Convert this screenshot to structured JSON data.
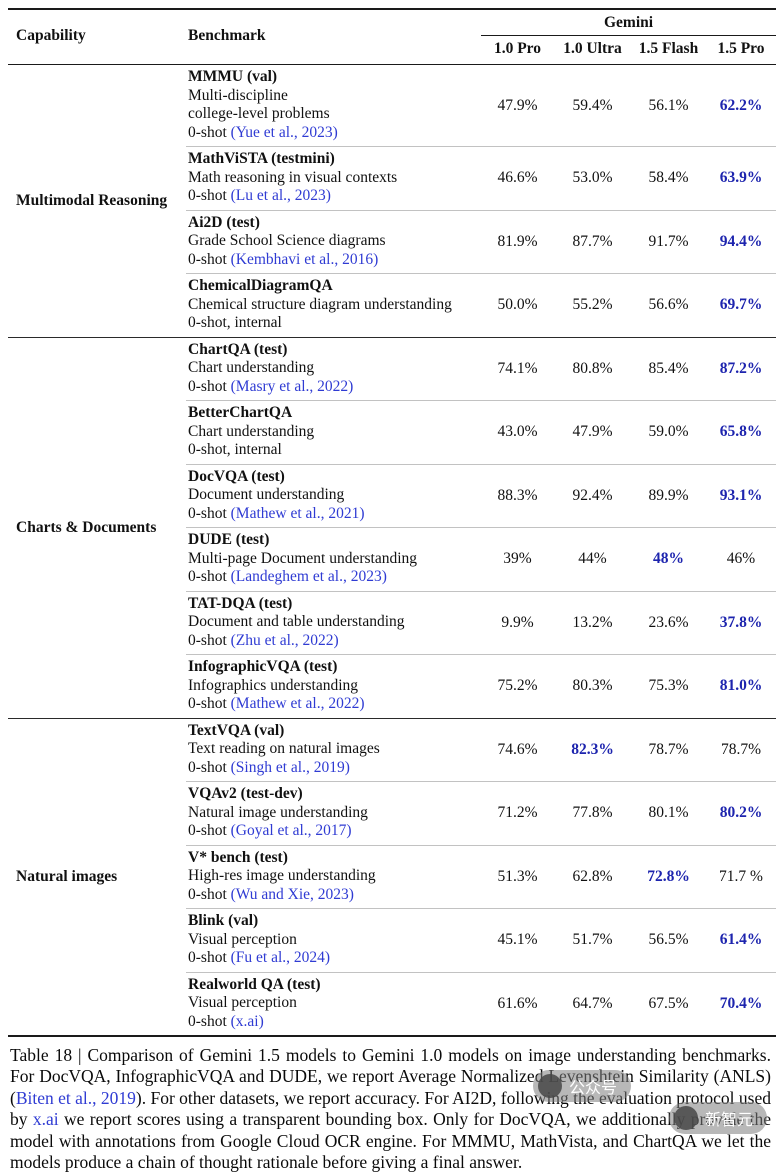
{
  "colors": {
    "best_value": "#1d24ae",
    "citation_blue": "#2f3bd3",
    "rule_dark": "#1a1a1a",
    "rule_light": "#c2c2c2"
  },
  "table": {
    "header": {
      "capability": "Capability",
      "benchmark": "Benchmark",
      "group": "Gemini",
      "models": [
        "1.0 Pro",
        "1.0 Ultra",
        "1.5 Flash",
        "1.5 Pro"
      ]
    },
    "groups": [
      {
        "capability": "Multimodal Reasoning",
        "rows": [
          {
            "name": "MMMU (val)",
            "desc": [
              "Multi-discipline",
              "college-level problems"
            ],
            "shot": "0-shot ",
            "citation": "(Yue et al., 2023)",
            "values": [
              "47.9%",
              "59.4%",
              "56.1%",
              "62.2%"
            ],
            "best": 3
          },
          {
            "name": "MathViSTA (testmini)",
            "desc": [
              "Math reasoning in visual contexts"
            ],
            "shot": "0-shot ",
            "citation": "(Lu et al., 2023)",
            "values": [
              "46.6%",
              "53.0%",
              "58.4%",
              "63.9%"
            ],
            "best": 3
          },
          {
            "name": "Ai2D (test)",
            "desc": [
              "Grade School Science diagrams"
            ],
            "shot": "0-shot ",
            "citation": "(Kembhavi et al., 2016)",
            "values": [
              "81.9%",
              "87.7%",
              "91.7%",
              "94.4%"
            ],
            "best": 3
          },
          {
            "name": "ChemicalDiagramQA",
            "desc": [
              "Chemical structure diagram understanding"
            ],
            "shot": "0-shot, internal",
            "citation": "",
            "values": [
              "50.0%",
              "55.2%",
              "56.6%",
              "69.7%"
            ],
            "best": 3
          }
        ]
      },
      {
        "capability": "Charts & Documents",
        "rows": [
          {
            "name": "ChartQA (test)",
            "desc": [
              "Chart understanding"
            ],
            "shot": "0-shot ",
            "citation": "(Masry et al., 2022)",
            "values": [
              "74.1%",
              "80.8%",
              "85.4%",
              "87.2%"
            ],
            "best": 3
          },
          {
            "name": "BetterChartQA",
            "desc": [
              "Chart understanding"
            ],
            "shot": "0-shot, internal",
            "citation": "",
            "values": [
              "43.0%",
              "47.9%",
              "59.0%",
              "65.8%"
            ],
            "best": 3
          },
          {
            "name": "DocVQA (test)",
            "desc": [
              "Document understanding"
            ],
            "shot": "0-shot ",
            "citation": "(Mathew et al., 2021)",
            "values": [
              "88.3%",
              "92.4%",
              "89.9%",
              "93.1%"
            ],
            "best": 3
          },
          {
            "name": "DUDE (test)",
            "desc": [
              "Multi-page Document understanding"
            ],
            "shot": "0-shot ",
            "citation": "(Landeghem et al., 2023)",
            "values": [
              "39%",
              "44%",
              "48%",
              "46%"
            ],
            "best": 2
          },
          {
            "name": "TAT-DQA (test)",
            "desc": [
              "Document and table understanding"
            ],
            "shot": "0-shot ",
            "citation": "(Zhu et al., 2022)",
            "values": [
              "9.9%",
              "13.2%",
              "23.6%",
              "37.8%"
            ],
            "best": 3
          },
          {
            "name": "InfographicVQA (test)",
            "desc": [
              "Infographics understanding"
            ],
            "shot": "0-shot ",
            "citation": "(Mathew et al., 2022)",
            "values": [
              "75.2%",
              "80.3%",
              "75.3%",
              "81.0%"
            ],
            "best": 3
          }
        ]
      },
      {
        "capability": "Natural images",
        "rows": [
          {
            "name": "TextVQA (val)",
            "desc": [
              "Text reading on natural images"
            ],
            "shot": "0-shot ",
            "citation": "(Singh et al., 2019)",
            "values": [
              "74.6%",
              "82.3%",
              "78.7%",
              "78.7%"
            ],
            "best": 1
          },
          {
            "name": "VQAv2 (test-dev)",
            "desc": [
              "Natural image understanding"
            ],
            "shot": "0-shot ",
            "citation": "(Goyal et al., 2017)",
            "values": [
              "71.2%",
              "77.8%",
              "80.1%",
              "80.2%"
            ],
            "best": 3
          },
          {
            "name": "V* bench (test)",
            "desc": [
              "High-res image understanding"
            ],
            "shot": "0-shot ",
            "citation": "(Wu and Xie, 2023)",
            "values": [
              "51.3%",
              "62.8%",
              "72.8%",
              "71.7 %"
            ],
            "best": 2
          },
          {
            "name": "Blink (val)",
            "desc": [
              "Visual perception"
            ],
            "shot": "0-shot ",
            "citation": "(Fu et al., 2024)",
            "values": [
              "45.1%",
              "51.7%",
              "56.5%",
              "61.4%"
            ],
            "best": 3
          },
          {
            "name": "Realworld QA (test)",
            "desc": [
              "Visual perception"
            ],
            "shot": "0-shot ",
            "citation": "(x.ai)",
            "values": [
              "61.6%",
              "64.7%",
              "67.5%",
              "70.4%"
            ],
            "best": 3
          }
        ]
      }
    ]
  },
  "caption": {
    "segments": [
      {
        "text": "Table 18 | Comparison of Gemini 1.5 models to Gemini 1.0 models on image understanding benchmarks. For DocVQA, InfographicVQA and DUDE, we report Average Normalized Levenshtein Similarity (ANLS) (",
        "link": false
      },
      {
        "text": "Biten et al., 2019",
        "link": true
      },
      {
        "text": "). For other datasets, we report accuracy. For AI2D, following the evaluation protocol used by ",
        "link": false
      },
      {
        "text": "x.ai",
        "link": true
      },
      {
        "text": " we report scores using a transparent bounding box. Only for DocVQA, we additionally provide the model with annotations from Google Cloud OCR engine. For MMMU, MathVista, and ChartQA we let the models produce a chain of thought rationale before giving a final answer.",
        "link": false
      }
    ]
  },
  "watermark": {
    "items": [
      "公众号",
      "新智元"
    ]
  }
}
